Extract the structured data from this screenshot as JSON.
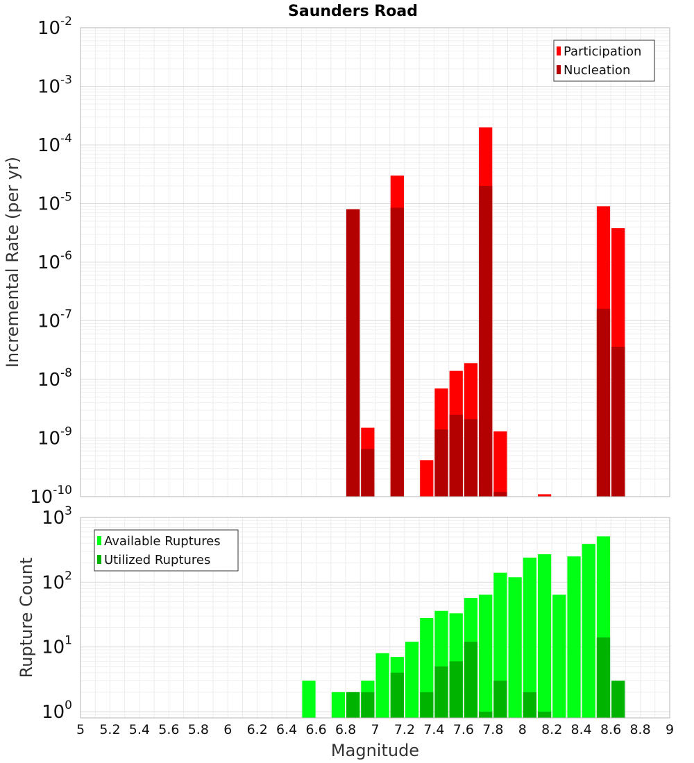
{
  "chart_data": [
    {
      "type": "bar",
      "title": "Saunders Road",
      "xlabel": "",
      "ylabel": "Incremental Rate (per yr)",
      "yscale": "log",
      "xlim": [
        5,
        9
      ],
      "ylim": [
        1e-10,
        0.01
      ],
      "y_ticks": [
        {
          "base": "10",
          "exp": "-10"
        },
        {
          "base": "10",
          "exp": "-9"
        },
        {
          "base": "10",
          "exp": "-8"
        },
        {
          "base": "10",
          "exp": "-7"
        },
        {
          "base": "10",
          "exp": "-6"
        },
        {
          "base": "10",
          "exp": "-5"
        },
        {
          "base": "10",
          "exp": "-4"
        },
        {
          "base": "10",
          "exp": "-3"
        },
        {
          "base": "10",
          "exp": "-2"
        }
      ],
      "bin_width": 0.1,
      "legend_position": "top-right",
      "series": [
        {
          "name": "Participation",
          "color": "#ff0000",
          "x": [
            6.85,
            6.95,
            7.15,
            7.35,
            7.45,
            7.55,
            7.65,
            7.75,
            7.85,
            8.15,
            8.55,
            8.65
          ],
          "values": [
            8e-06,
            1.5e-09,
            3e-05,
            4.2e-10,
            7e-09,
            1.4e-08,
            1.9e-08,
            0.0002,
            1.3e-09,
            1.1e-10,
            9e-06,
            3.8e-06
          ]
        },
        {
          "name": "Nucleation",
          "color": "#b30000",
          "x": [
            6.85,
            6.95,
            7.15,
            7.45,
            7.55,
            7.65,
            7.75,
            7.85,
            8.55,
            8.65
          ],
          "values": [
            8e-06,
            6.5e-10,
            8.5e-06,
            1.4e-09,
            2.5e-09,
            2.1e-09,
            2e-05,
            1.2e-10,
            1.6e-07,
            3.6e-08
          ]
        }
      ]
    },
    {
      "type": "bar",
      "title": "",
      "xlabel": "Magnitude",
      "ylabel": "Rupture Count",
      "yscale": "log",
      "xlim": [
        5,
        9
      ],
      "ylim": [
        0.8,
        1000
      ],
      "y_ticks": [
        {
          "base": "10",
          "exp": "0"
        },
        {
          "base": "10",
          "exp": "1"
        },
        {
          "base": "10",
          "exp": "2"
        },
        {
          "base": "10",
          "exp": "3"
        }
      ],
      "x_ticks": [
        "5",
        "5.2",
        "5.4",
        "5.6",
        "5.8",
        "6",
        "6.2",
        "6.4",
        "6.6",
        "6.8",
        "7",
        "7.2",
        "7.4",
        "7.6",
        "7.8",
        "8",
        "8.2",
        "8.4",
        "8.6",
        "8.8",
        "9"
      ],
      "bin_width": 0.1,
      "legend_position": "top-left",
      "series": [
        {
          "name": "Available Ruptures",
          "color": "#00ff14",
          "x": [
            6.55,
            6.75,
            6.85,
            6.95,
            7.05,
            7.15,
            7.25,
            7.35,
            7.45,
            7.55,
            7.65,
            7.75,
            7.85,
            7.95,
            8.05,
            8.15,
            8.25,
            8.35,
            8.45,
            8.55
          ],
          "values": [
            3,
            2,
            2,
            3,
            8,
            7,
            12,
            28,
            36,
            33,
            57,
            64,
            140,
            119,
            240,
            270,
            64,
            250,
            390,
            510
          ]
        },
        {
          "name": "Utilized Ruptures",
          "color": "#00b300",
          "x": [
            6.85,
            6.95,
            7.15,
            7.35,
            7.45,
            7.55,
            7.65,
            7.75,
            7.85,
            8.05,
            8.15,
            8.55,
            8.65
          ],
          "values": [
            2,
            2,
            4,
            2,
            5,
            6,
            12,
            1,
            3,
            2,
            1,
            14,
            3
          ]
        }
      ]
    }
  ]
}
